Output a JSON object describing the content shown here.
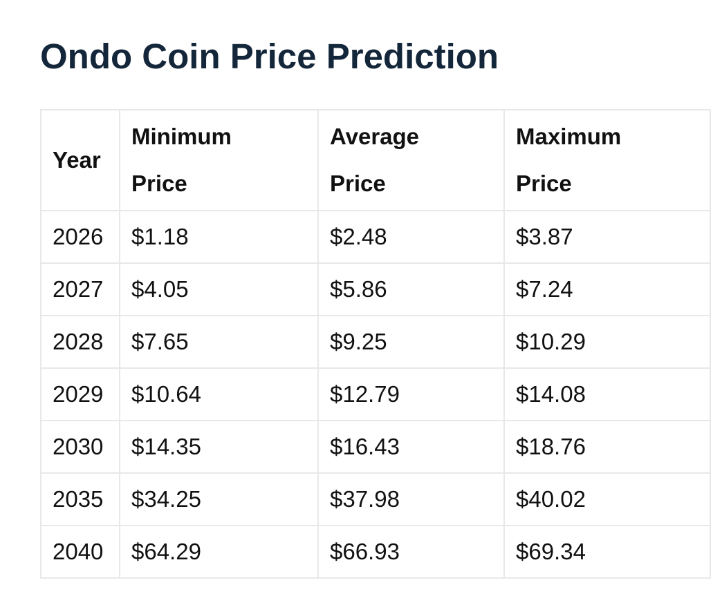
{
  "title": "Ondo Coin Price Prediction",
  "table": {
    "headers": {
      "year": "Year",
      "minimum": [
        "Minimum",
        "Price"
      ],
      "average": [
        "Average",
        "Price"
      ],
      "maximum": [
        "Maximum",
        "Price"
      ]
    },
    "rows": [
      {
        "year": "2026",
        "min": "$1.18",
        "avg": "$2.48",
        "max": "$3.87"
      },
      {
        "year": "2027",
        "min": "$4.05",
        "avg": "$5.86",
        "max": "$7.24"
      },
      {
        "year": "2028",
        "min": "$7.65",
        "avg": "$9.25",
        "max": "$10.29"
      },
      {
        "year": "2029",
        "min": "$10.64",
        "avg": "$12.79",
        "max": "$14.08"
      },
      {
        "year": "2030",
        "min": "$14.35",
        "avg": "$16.43",
        "max": "$18.76"
      },
      {
        "year": "2035",
        "min": "$34.25",
        "avg": "$37.98",
        "max": "$40.02"
      },
      {
        "year": "2040",
        "min": "$64.29",
        "avg": "$66.93",
        "max": "$69.34"
      }
    ]
  }
}
